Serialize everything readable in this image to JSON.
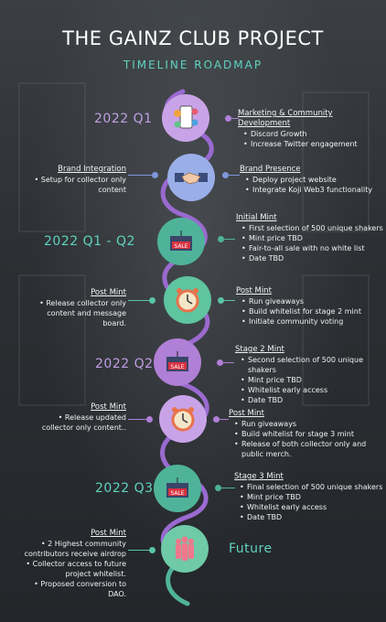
{
  "header": {
    "title": "THE GAINZ CLUB PROJECT",
    "subtitle": "TIMELINE ROADMAP"
  },
  "colors": {
    "purple": "#b07fd6",
    "teal": "#4fb39a",
    "blue": "#7f96d9",
    "pink": "#f0788c",
    "green": "#58c4a6"
  },
  "stages": [
    {
      "date": "2022 Q1",
      "icon": "phone-social-icon",
      "right": {
        "heading": "Marketing & Community Development",
        "items": [
          "Discord Growth",
          "Increase Twitter engagement"
        ]
      }
    },
    {
      "icon": "handshake-icon",
      "left": {
        "heading": "Brand Integration",
        "items": [
          "• Setup for collector only content"
        ]
      },
      "right": {
        "heading": "Brand Presence",
        "items": [
          "Deploy project website",
          "Integrate Koji Web3 functionality"
        ]
      }
    },
    {
      "date": "2022 Q1 - Q2",
      "icon": "sale-tag-icon",
      "right": {
        "heading": "Initial Mint",
        "items": [
          "First selection of 500 unique shakers",
          "Mint price TBD",
          "Fair-to-all sale with no white list",
          "Date TBD"
        ]
      }
    },
    {
      "icon": "alarm-clock-icon",
      "left": {
        "heading": "Post Mint",
        "items": [
          "• Release collector only content and message board."
        ]
      },
      "right": {
        "heading": "Post Mint",
        "items": [
          "Run giveaways",
          "Build whitelist for stage 2 mint",
          "Initiate community voting"
        ]
      }
    },
    {
      "date": "2022 Q2",
      "icon": "sale-tag-icon",
      "right": {
        "heading": "Stage 2 Mint",
        "items": [
          "Second selection of 500 unique shakers",
          "Mint price TBD",
          "Whitelist early access",
          "Date TBD"
        ]
      }
    },
    {
      "icon": "alarm-clock-icon",
      "left": {
        "heading": "Post Mint",
        "items": [
          "• Release updated collector only content.."
        ]
      },
      "right": {
        "heading": "Post Mint",
        "items": [
          "Run giveaways",
          "Build whitelist for stage 3 mint",
          "Release of both collector only and public merch."
        ]
      }
    },
    {
      "date": "2022 Q3",
      "icon": "sale-tag-icon",
      "right": {
        "heading": "Stage 3 Mint",
        "items": [
          "Final selection of 500 unique shakers",
          "Mint price TBD",
          "Whitelist early access",
          "Date TBD"
        ]
      }
    },
    {
      "date": "Future",
      "icon": "people-silhouette-icon",
      "left": {
        "heading": "Post Mint",
        "items": [
          "• 2 Highest community contributors receive airdrop",
          "• Collector access to future project whitelist.",
          "• Proposed conversion to DAO."
        ]
      }
    }
  ]
}
